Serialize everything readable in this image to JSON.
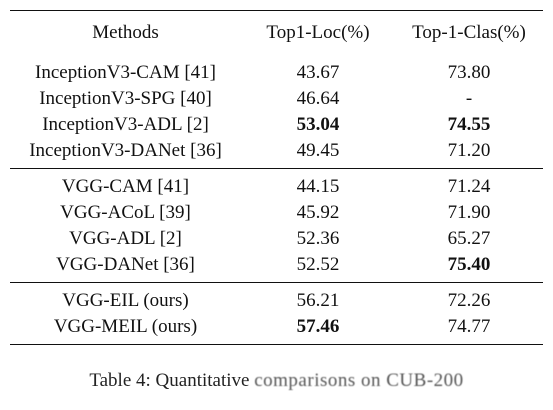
{
  "table": {
    "headers": [
      "Methods",
      "Top1-Loc(%)",
      "Top-1-Clas(%)"
    ],
    "groups": [
      [
        {
          "method": "InceptionV3-CAM [41]",
          "loc": "43.67",
          "clas": "73.80",
          "loc_bold": false,
          "clas_bold": false
        },
        {
          "method": "InceptionV3-SPG [40]",
          "loc": "46.64",
          "clas": "-",
          "loc_bold": false,
          "clas_bold": false
        },
        {
          "method": "InceptionV3-ADL [2]",
          "loc": "53.04",
          "clas": "74.55",
          "loc_bold": true,
          "clas_bold": true
        },
        {
          "method": "InceptionV3-DANet [36]",
          "loc": "49.45",
          "clas": "71.20",
          "loc_bold": false,
          "clas_bold": false
        }
      ],
      [
        {
          "method": "VGG-CAM [41]",
          "loc": "44.15",
          "clas": "71.24",
          "loc_bold": false,
          "clas_bold": false
        },
        {
          "method": "VGG-ACoL [39]",
          "loc": "45.92",
          "clas": "71.90",
          "loc_bold": false,
          "clas_bold": false
        },
        {
          "method": "VGG-ADL [2]",
          "loc": "52.36",
          "clas": "65.27",
          "loc_bold": false,
          "clas_bold": false
        },
        {
          "method": "VGG-DANet [36]",
          "loc": "52.52",
          "clas": "75.40",
          "loc_bold": false,
          "clas_bold": true
        }
      ],
      [
        {
          "method": "VGG-EIL (ours)",
          "loc": "56.21",
          "clas": "72.26",
          "loc_bold": false,
          "clas_bold": false
        },
        {
          "method": "VGG-MEIL (ours)",
          "loc": "57.46",
          "clas": "74.77",
          "loc_bold": true,
          "clas_bold": false
        }
      ]
    ]
  },
  "caption": {
    "prefix": "Table 4: Quantitative",
    "rest": "comparisons on CUB-200"
  }
}
